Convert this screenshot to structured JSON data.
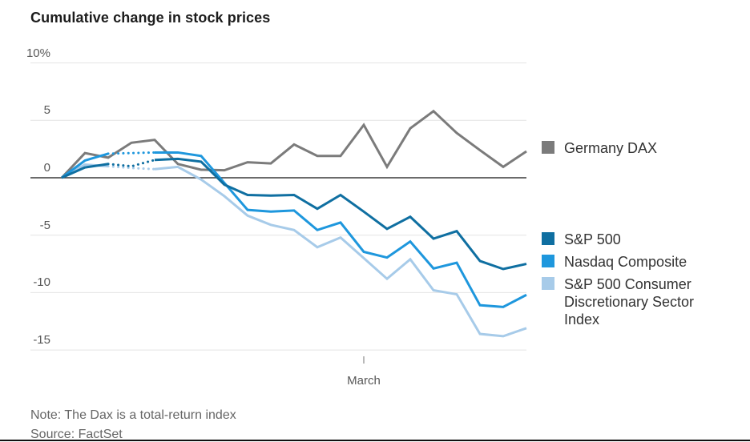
{
  "title": "Cumulative change in stock prices",
  "note": "Note: The Dax is a total-return index",
  "source": "Source: FactSet",
  "colors": {
    "dax": "#7b7b7b",
    "spx": "#0f6fa1",
    "nasdaq": "#1e97dd",
    "consumer": "#a7cbe9",
    "grid": "#e4e4e4",
    "zero_line": "#3a3a3a",
    "axis_text": "#575757",
    "tick_mark": "#8a8a8a"
  },
  "legend": {
    "dax": "Germany DAX",
    "spx": "S&P 500",
    "nasdaq": "Nasdaq Composite",
    "consumer": "S&P 500 Consumer Discretionary Sector Index"
  },
  "chart_data": {
    "type": "line",
    "title": "Cumulative change in stock prices",
    "unit": "percent",
    "x_axis": {
      "label": "March",
      "tick_point_index": 13
    },
    "y_axis": {
      "range": [
        -17,
        11
      ],
      "ticks": [
        {
          "label": "10%",
          "value": 10
        },
        {
          "label": "5",
          "value": 5
        },
        {
          "label": "0",
          "value": 0
        },
        {
          "label": "-5",
          "value": -5
        },
        {
          "label": "-10",
          "value": -10
        },
        {
          "label": "-15",
          "value": -15
        }
      ]
    },
    "series": [
      {
        "name": "Germany DAX",
        "color_key": "dax",
        "z": 0,
        "values": [
          0,
          2.15,
          1.75,
          3.05,
          3.3,
          1.2,
          0.7,
          0.65,
          1.35,
          1.25,
          2.9,
          1.9,
          1.9,
          4.6,
          0.95,
          4.3,
          5.8,
          3.9,
          2.4,
          0.95,
          2.3
        ]
      },
      {
        "name": "S&P 500",
        "color_key": "spx",
        "z": 3,
        "dotted_span": [
          2,
          4
        ],
        "values": [
          0,
          0.9,
          1.2,
          1.0,
          1.55,
          1.65,
          1.4,
          -0.6,
          -1.5,
          -1.55,
          -1.5,
          -2.7,
          -1.5,
          -2.95,
          -4.45,
          -3.4,
          -5.3,
          -4.65,
          -7.25,
          -7.95,
          -7.5
        ]
      },
      {
        "name": "Nasdaq Composite",
        "color_key": "nasdaq",
        "z": 2,
        "dotted_span": [
          2,
          4
        ],
        "values": [
          0,
          1.5,
          2.1,
          2.15,
          2.2,
          2.2,
          1.9,
          -0.45,
          -2.8,
          -2.95,
          -2.85,
          -4.55,
          -3.9,
          -6.45,
          -6.95,
          -5.55,
          -7.9,
          -7.4,
          -11.1,
          -11.25,
          -10.2
        ]
      },
      {
        "name": "S&P 500 Consumer Discretionary Sector Index",
        "color_key": "consumer",
        "z": 1,
        "dotted_span": [
          2,
          4
        ],
        "values": [
          0,
          1.15,
          1.0,
          0.85,
          0.75,
          0.95,
          -0.15,
          -1.6,
          -3.3,
          -4.1,
          -4.55,
          -6.05,
          -5.2,
          -7.0,
          -8.8,
          -7.1,
          -9.8,
          -10.15,
          -13.6,
          -13.8,
          -13.1
        ]
      }
    ]
  }
}
